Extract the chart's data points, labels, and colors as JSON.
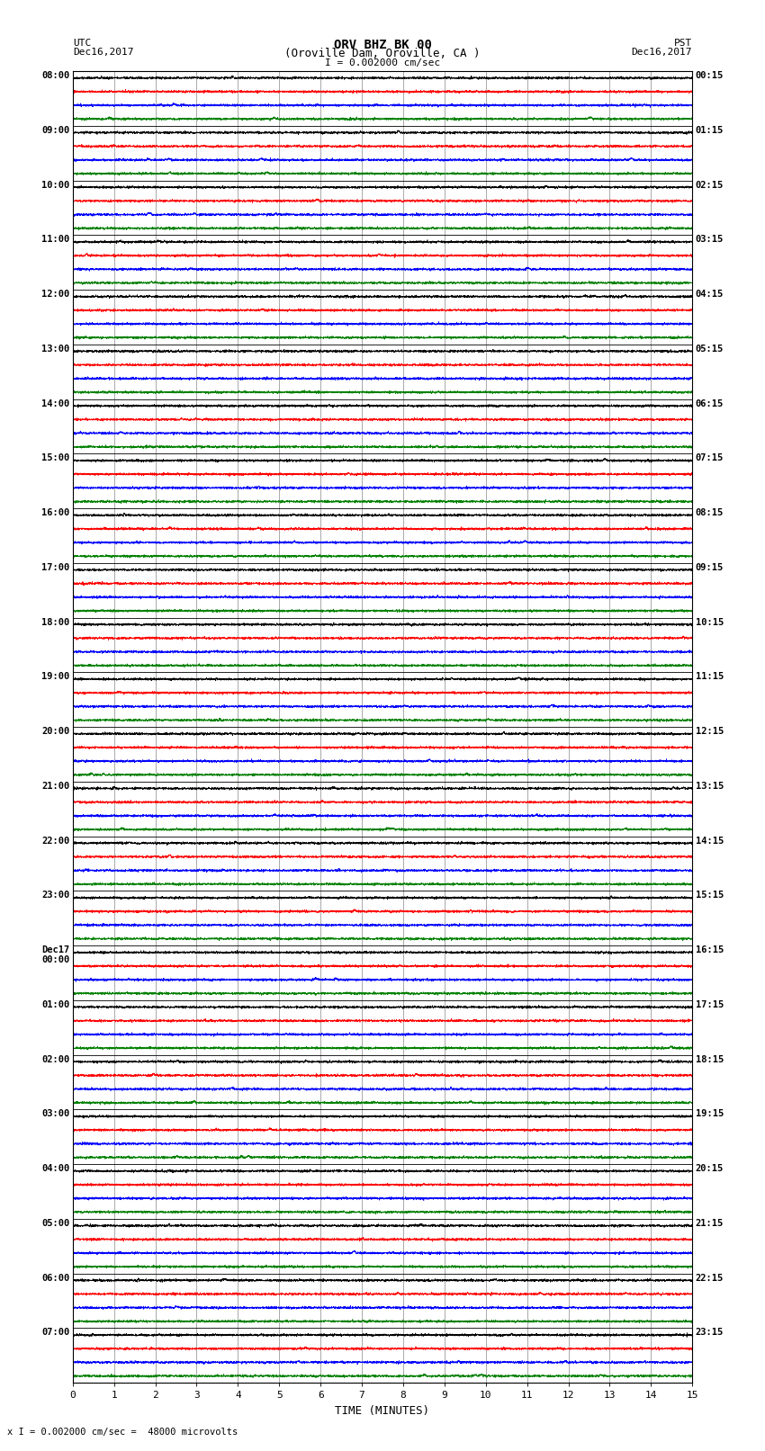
{
  "title_line1": "ORV BHZ BK 00",
  "title_line2": "(Oroville Dam, Oroville, CA )",
  "scale_label": "I = 0.002000 cm/sec",
  "xlabel": "TIME (MINUTES)",
  "footer": "x I = 0.002000 cm/sec =  48000 microvolts",
  "left_times": [
    "08:00",
    "09:00",
    "10:00",
    "11:00",
    "12:00",
    "13:00",
    "14:00",
    "15:00",
    "16:00",
    "17:00",
    "18:00",
    "19:00",
    "20:00",
    "21:00",
    "22:00",
    "23:00",
    "Dec17\n00:00",
    "01:00",
    "02:00",
    "03:00",
    "04:00",
    "05:00",
    "06:00",
    "07:00"
  ],
  "right_times": [
    "00:15",
    "01:15",
    "02:15",
    "03:15",
    "04:15",
    "05:15",
    "06:15",
    "07:15",
    "08:15",
    "09:15",
    "10:15",
    "11:15",
    "12:15",
    "13:15",
    "14:15",
    "15:15",
    "16:15",
    "17:15",
    "18:15",
    "19:15",
    "20:15",
    "21:15",
    "22:15",
    "23:15"
  ],
  "n_rows": 24,
  "colors": [
    "black",
    "red",
    "blue",
    "green"
  ],
  "bg_color": "white",
  "grid_color": "#888888",
  "grid_linewidth": 0.5,
  "trace_linewidth": 0.5,
  "noise_amplitude": 0.04,
  "xmin": 0,
  "xmax": 15
}
